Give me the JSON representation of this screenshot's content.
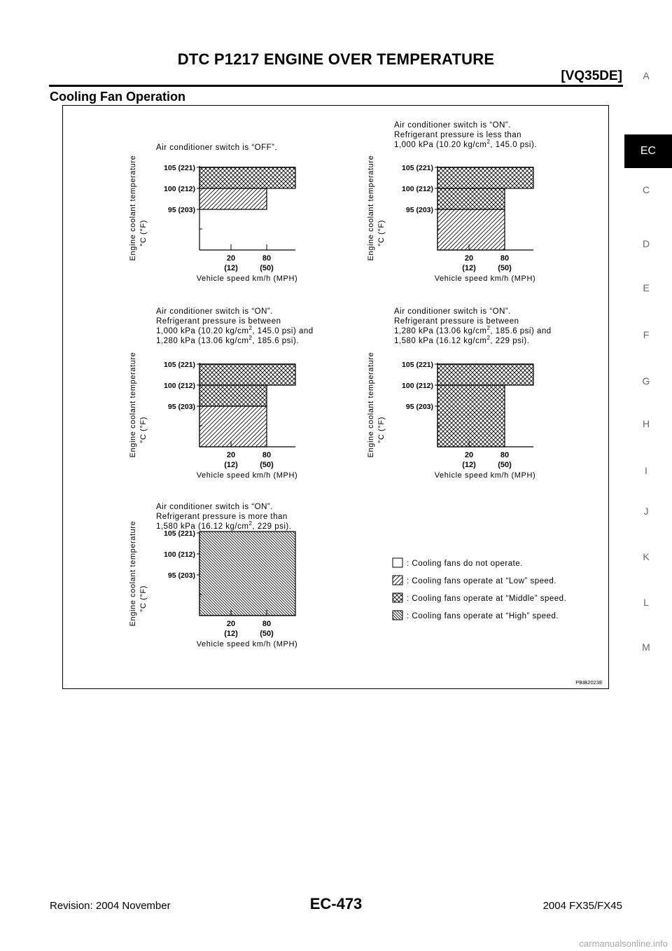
{
  "header": {
    "title": "DTC P1217 ENGINE OVER TEMPERATURE",
    "code": "[VQ35DE]"
  },
  "section": {
    "title": "Cooling Fan Operation"
  },
  "side_tabs": {
    "items": [
      "A",
      "EC",
      "C",
      "D",
      "E",
      "F",
      "G",
      "H",
      "I",
      "J",
      "K",
      "L",
      "M"
    ],
    "active": "EC"
  },
  "figure": {
    "id": "PBIB2023E",
    "y_axis_label": "Engine coolant temperature",
    "y_axis_unit": "°C (°F)",
    "x_axis_label": "Vehicle speed km/h (MPH)",
    "y_ticks": [
      "105 (221)",
      "100 (212)",
      "95 (203)"
    ],
    "x_ticks": [
      {
        "main": "20",
        "sub": "(12)"
      },
      {
        "main": "80",
        "sub": "(50)"
      }
    ],
    "charts": [
      {
        "title_lines": [
          {
            "t": "Air conditioner switch is “OFF”."
          }
        ],
        "regions": [
          {
            "fill": "middle",
            "t0": 100,
            "t1": 105,
            "speed": "all"
          },
          {
            "fill": "low",
            "t0": 95,
            "t1": 100,
            "speed": "below_80"
          }
        ]
      },
      {
        "title_lines": [
          {
            "t": "Air conditioner switch is “ON”."
          },
          {
            "t": "Refrigerant pressure is less than"
          },
          {
            "t": "1,000 kPa (10.20 kg/cm",
            "sup": "2",
            "after": ", 145.0 psi)."
          }
        ],
        "regions": [
          {
            "fill": "middle",
            "t0": 100,
            "t1": 105,
            "speed": "all"
          },
          {
            "fill": "middle",
            "t0": 95,
            "t1": 100,
            "speed": "below_80"
          },
          {
            "fill": "low",
            "t0": "min",
            "t1": 95,
            "speed": "below_80"
          }
        ]
      },
      {
        "title_lines": [
          {
            "t": "Air conditioner switch is “ON”."
          },
          {
            "t": "Refrigerant pressure is between"
          },
          {
            "t": "1,000 kPa (10.20 kg/cm",
            "sup": "2",
            "after": ", 145.0 psi) and"
          },
          {
            "t": "1,280 kPa (13.06 kg/cm",
            "sup": "2",
            "after": ", 185.6 psi)."
          }
        ],
        "regions": [
          {
            "fill": "middle",
            "t0": 100,
            "t1": 105,
            "speed": "all"
          },
          {
            "fill": "middle",
            "t0": 95,
            "t1": 100,
            "speed": "below_80"
          },
          {
            "fill": "low",
            "t0": "min",
            "t1": 95,
            "speed": "below_80"
          }
        ]
      },
      {
        "title_lines": [
          {
            "t": "Air conditioner switch is “ON”."
          },
          {
            "t": "Refrigerant pressure is between"
          },
          {
            "t": "1,280 kPa (13.06 kg/cm",
            "sup": "2",
            "after": ", 185.6 psi) and"
          },
          {
            "t": "1,580 kPa (16.12 kg/cm",
            "sup": "2",
            "after": ", 229 psi)."
          }
        ],
        "regions": [
          {
            "fill": "middle",
            "t0": 100,
            "t1": 105,
            "speed": "all"
          },
          {
            "fill": "middle",
            "t0": "min",
            "t1": 100,
            "speed": "below_80"
          }
        ]
      },
      {
        "title_lines": [
          {
            "t": "Air conditioner switch is “ON”."
          },
          {
            "t": "Refrigerant pressure is more than"
          },
          {
            "t": "1,580 kPa (16.12 kg/cm",
            "sup": "2",
            "after": ", 229 psi)."
          }
        ],
        "regions": [
          {
            "fill": "high",
            "t0": "min",
            "t1": "max",
            "speed": "all"
          }
        ]
      }
    ],
    "legend": [
      {
        "fill": "none",
        "label": ": Cooling fans do not operate."
      },
      {
        "fill": "low",
        "label": ": Cooling fans operate at “Low” speed."
      },
      {
        "fill": "middle",
        "label": ": Cooling fans operate at “Middle” speed."
      },
      {
        "fill": "high",
        "label": ": Cooling fans operate at “High” speed."
      }
    ]
  },
  "footer": {
    "revision": "Revision: 2004 November",
    "page": "EC-473",
    "model": "2004 FX35/FX45"
  },
  "watermark": "carmanualsonline.info"
}
